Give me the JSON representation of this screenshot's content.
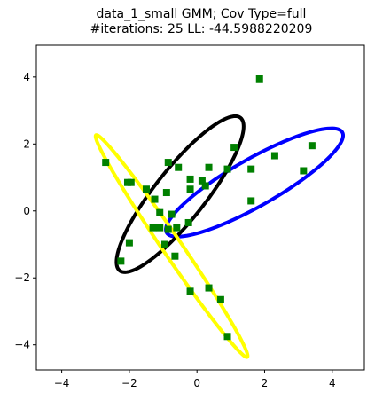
{
  "chart_data": {
    "type": "scatter",
    "title_lines": [
      "data_1_small GMM; Cov Type=full",
      "#iterations: 25 LL: -44.5988220209"
    ],
    "xlabel": "",
    "ylabel": "",
    "xlim": [
      -4.75,
      4.95
    ],
    "ylim": [
      -4.75,
      4.95
    ],
    "xticks": [
      -4,
      -2,
      0,
      2,
      4
    ],
    "yticks": [
      -4,
      -2,
      0,
      2,
      4
    ],
    "xtick_labels": [
      "−4",
      "−2",
      "0",
      "2",
      "4"
    ],
    "ytick_labels": [
      "−4",
      "−2",
      "0",
      "2",
      "4"
    ],
    "grid": false,
    "points": {
      "color": "#008000",
      "marker": "square",
      "x": [
        1.85,
        -2.7,
        -2.05,
        -1.95,
        -1.5,
        -0.85,
        -0.55,
        -0.2,
        0.15,
        0.35,
        -0.9,
        -0.2,
        0.25,
        1.1,
        0.9,
        1.6,
        2.3,
        3.15,
        3.4,
        -1.25,
        -1.1,
        -0.75,
        -0.6,
        -0.85,
        -1.3,
        -1.1,
        -0.95,
        -0.25,
        -2.0,
        -2.25,
        -0.65,
        -0.2,
        0.35,
        0.7,
        0.9,
        1.6
      ],
      "y": [
        3.95,
        1.45,
        0.85,
        0.85,
        0.65,
        1.45,
        1.3,
        0.95,
        0.9,
        1.3,
        0.55,
        0.65,
        0.75,
        1.9,
        1.25,
        1.25,
        1.65,
        1.2,
        1.95,
        0.35,
        -0.05,
        -0.1,
        -0.5,
        -0.55,
        -0.5,
        -0.5,
        -1.0,
        -0.35,
        -0.95,
        -1.5,
        -1.35,
        -2.4,
        -2.3,
        -2.65,
        -3.75,
        0.3
      ]
    },
    "ellipses": [
      {
        "color": "#0000ff",
        "center": [
          1.7,
          0.85
        ],
        "semi_major": 3.0,
        "semi_minor": 0.7,
        "angle_deg": 30
      },
      {
        "color": "#000000",
        "center": [
          -0.5,
          0.5
        ],
        "semi_major": 2.9,
        "semi_minor": 0.75,
        "angle_deg": 52
      },
      {
        "color": "#ffff00",
        "center": [
          -0.75,
          -1.05
        ],
        "semi_major": 4.0,
        "semi_minor": 0.28,
        "angle_deg": -56
      }
    ]
  }
}
